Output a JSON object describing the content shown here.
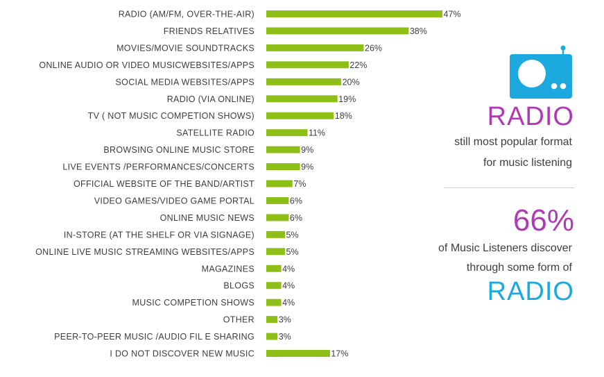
{
  "colors": {
    "bar": "#8dbf16",
    "purple": "#b03ab6",
    "cyan": "#1ba9df",
    "text": "#3d3d3d"
  },
  "chart_data": {
    "type": "bar",
    "orientation": "horizontal",
    "categories": [
      "RADIO (AM/FM, OVER-THE-AIR)",
      "FRIENDS RELATIVES",
      "MOVIES/MOVIE SOUNDTRACKS",
      "ONLINE AUDIO OR  VIDEO MUSICWEBSITES/APPS",
      "SOCIAL MEDIA WEBSITES/APPS",
      "RADIO (VIA ONLINE)",
      "TV ( NOT MUSIC COMPETION SHOWS)",
      "SATELLITE  RADIO",
      "BROWSING  ONLINE MUSIC STORE",
      "LIVE EVENTS /PERFORMANCES/CONCERTS",
      "OFFICIAL WEBSITE OF  THE BAND/ARTIST",
      "VIDEO GAMES/VIDEO GAME PORTAL",
      "ONLINE MUSIC NEWS",
      "IN-STORE (AT THE SHELF OR VIA SIGNAGE)",
      "ONLINE LIVE MUSIC STREAMING WEBSITES/APPS",
      "MAGAZINES",
      "BLOGS",
      "MUSIC COMPETION SHOWS",
      "OTHER",
      "PEER-TO-PEER MUSIC /AUDIO FIL E SHARING",
      "I DO NOT DISCOVER NEW MUSIC"
    ],
    "values": [
      47,
      38,
      26,
      22,
      20,
      19,
      18,
      11,
      9,
      9,
      7,
      6,
      6,
      5,
      5,
      4,
      4,
      4,
      3,
      3,
      17
    ],
    "value_labels": [
      "47%",
      "38%",
      "26%",
      "22%",
      "20%",
      "19%",
      "18%",
      "11%",
      "9%",
      "9%",
      "7%",
      "6%",
      "6%",
      "5%",
      "5%",
      "4%",
      "4%",
      "4%",
      "3%",
      "3%",
      "17%"
    ],
    "xlim": [
      0,
      47
    ],
    "grid": false,
    "legend": "none"
  },
  "side_panel": {
    "icon": "radio-icon",
    "headline": "RADIO",
    "subline_1": "still most popular format",
    "subline_2": "for music listening",
    "stat": "66%",
    "stat_line_1": "of Music Listeners discover",
    "stat_line_2": "through some form of",
    "footer": "RADIO"
  }
}
